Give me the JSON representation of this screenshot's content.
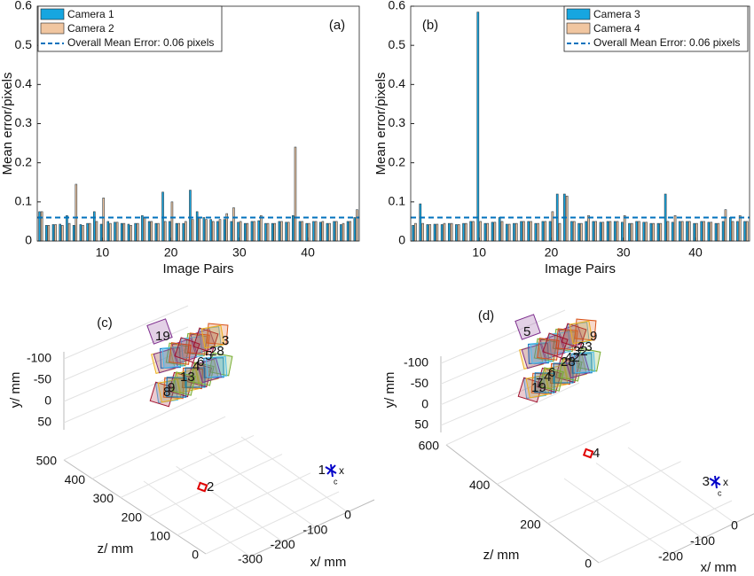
{
  "chart_data": [
    {
      "type": "bar",
      "panel": "(a)",
      "xlabel": "Image Pairs",
      "ylabel": "Mean error/pixels",
      "x": [
        1,
        2,
        3,
        4,
        5,
        6,
        7,
        8,
        9,
        10,
        11,
        12,
        13,
        14,
        15,
        16,
        17,
        18,
        19,
        20,
        21,
        22,
        23,
        24,
        25,
        26,
        27,
        28,
        29,
        30,
        31,
        32,
        33,
        34,
        35,
        36,
        37,
        38,
        39,
        40,
        41,
        42,
        43,
        44,
        45,
        46,
        47
      ],
      "series": [
        {
          "name": "Camera 1",
          "color": "#16a6e0",
          "values": [
            0.075,
            0.04,
            0.042,
            0.043,
            0.065,
            0.04,
            0.042,
            0.045,
            0.075,
            0.043,
            0.05,
            0.048,
            0.045,
            0.043,
            0.045,
            0.065,
            0.05,
            0.045,
            0.125,
            0.05,
            0.045,
            0.045,
            0.13,
            0.075,
            0.06,
            0.055,
            0.05,
            0.055,
            0.05,
            0.048,
            0.045,
            0.05,
            0.052,
            0.045,
            0.045,
            0.05,
            0.048,
            0.065,
            0.05,
            0.045,
            0.05,
            0.048,
            0.045,
            0.05,
            0.042,
            0.05,
            0.06
          ]
        },
        {
          "name": "Camera 2",
          "color": "#f1c6a0",
          "values": [
            0.075,
            0.04,
            0.042,
            0.04,
            0.045,
            0.145,
            0.04,
            0.045,
            0.05,
            0.11,
            0.045,
            0.048,
            0.045,
            0.04,
            0.045,
            0.06,
            0.05,
            0.045,
            0.05,
            0.1,
            0.045,
            0.05,
            0.055,
            0.06,
            0.055,
            0.05,
            0.055,
            0.07,
            0.085,
            0.05,
            0.045,
            0.05,
            0.065,
            0.045,
            0.045,
            0.05,
            0.048,
            0.24,
            0.05,
            0.045,
            0.05,
            0.05,
            0.045,
            0.05,
            0.045,
            0.05,
            0.08
          ]
        }
      ],
      "mean_value": 0.06,
      "mean_label": "Overall Mean Error: 0.06 pixels",
      "mean_color": "#0072bd",
      "legend": "upper left",
      "xlim": [
        0.5,
        47.5
      ],
      "xticks": [
        10,
        20,
        30,
        40
      ],
      "ylim": [
        0,
        0.6
      ],
      "yticks": [
        0,
        0.1,
        0.2,
        0.3,
        0.4,
        0.5,
        0.6
      ]
    },
    {
      "type": "bar",
      "panel": "(b)",
      "xlabel": "Image Pairs",
      "ylabel": "Mean error/pixels",
      "x": [
        1,
        2,
        3,
        4,
        5,
        6,
        7,
        8,
        9,
        10,
        11,
        12,
        13,
        14,
        15,
        16,
        17,
        18,
        19,
        20,
        21,
        22,
        23,
        24,
        25,
        26,
        27,
        28,
        29,
        30,
        31,
        32,
        33,
        34,
        35,
        36,
        37,
        38,
        39,
        40,
        41,
        42,
        43,
        44,
        45,
        46,
        47
      ],
      "series": [
        {
          "name": "Camera 3",
          "color": "#16a6e0",
          "values": [
            0.04,
            0.095,
            0.042,
            0.043,
            0.042,
            0.045,
            0.042,
            0.045,
            0.05,
            0.585,
            0.045,
            0.048,
            0.06,
            0.043,
            0.045,
            0.05,
            0.05,
            0.045,
            0.05,
            0.05,
            0.12,
            0.12,
            0.05,
            0.045,
            0.05,
            0.05,
            0.048,
            0.05,
            0.05,
            0.048,
            0.045,
            0.05,
            0.048,
            0.045,
            0.045,
            0.12,
            0.048,
            0.05,
            0.05,
            0.045,
            0.05,
            0.048,
            0.045,
            0.05,
            0.06,
            0.05,
            0.05
          ]
        },
        {
          "name": "Camera 4",
          "color": "#f1c6a0",
          "values": [
            0.045,
            0.045,
            0.042,
            0.043,
            0.045,
            0.045,
            0.042,
            0.045,
            0.05,
            0.05,
            0.045,
            0.048,
            0.05,
            0.043,
            0.045,
            0.05,
            0.05,
            0.045,
            0.05,
            0.075,
            0.045,
            0.115,
            0.05,
            0.045,
            0.065,
            0.05,
            0.048,
            0.05,
            0.05,
            0.065,
            0.045,
            0.05,
            0.048,
            0.045,
            0.045,
            0.05,
            0.065,
            0.05,
            0.05,
            0.045,
            0.05,
            0.048,
            0.045,
            0.08,
            0.05,
            0.065,
            0.05
          ]
        }
      ],
      "mean_value": 0.06,
      "mean_label": "Overall Mean Error: 0.06 pixels",
      "mean_color": "#0072bd",
      "legend": "upper right",
      "xlim": [
        0.5,
        47.5
      ],
      "xticks": [
        10,
        20,
        30,
        40
      ],
      "ylim": [
        0,
        0.6
      ],
      "yticks": [
        0,
        0.1,
        0.2,
        0.3,
        0.4,
        0.5,
        0.6
      ]
    },
    {
      "type": "scatter3d",
      "panel": "(c)",
      "xlabel": "x/ mm",
      "ylabel": "y/ mm",
      "zlabel": "z/ mm",
      "xlim": [
        -300,
        0
      ],
      "xticks": [
        -300,
        -200,
        -100,
        0
      ],
      "ylim": [
        -100,
        50
      ],
      "yticks": [
        -100,
        -50,
        0,
        50
      ],
      "zlim": [
        0,
        500
      ],
      "zticks": [
        0,
        100,
        200,
        300,
        400,
        500
      ],
      "camera_labels": [
        {
          "text": "2",
          "color": "#e00000"
        },
        {
          "text": "1",
          "color": "#0000c8"
        }
      ],
      "camera_axis_label": "x",
      "camera_axis_subscript": "c",
      "board_labels": [
        "19",
        "6",
        "9",
        "28",
        "13",
        "3",
        "4",
        "8",
        "5"
      ],
      "board_colors": [
        "#7e2f8e",
        "#d95319",
        "#edb120",
        "#77ac30",
        "#4dbeee",
        "#a2142f",
        "#0072bd"
      ]
    },
    {
      "type": "scatter3d",
      "panel": "(d)",
      "xlabel": "x/ mm",
      "ylabel": "y/ mm",
      "zlabel": "z/ mm",
      "xlim": [
        -200,
        0
      ],
      "xticks": [
        -200,
        -100,
        0
      ],
      "ylim": [
        -100,
        50
      ],
      "yticks": [
        -100,
        -50,
        0,
        50
      ],
      "zlim": [
        0,
        600
      ],
      "zticks": [
        0,
        200,
        400,
        600
      ],
      "camera_labels": [
        {
          "text": "4",
          "color": "#e00000"
        },
        {
          "text": "3",
          "color": "#0000c8"
        }
      ],
      "camera_axis_label": "x",
      "camera_axis_subscript": "c",
      "board_labels": [
        "5",
        "42",
        "7",
        "23",
        "6",
        "9",
        "28",
        "19",
        "32",
        "4"
      ],
      "board_colors": [
        "#7e2f8e",
        "#d95319",
        "#edb120",
        "#77ac30",
        "#4dbeee",
        "#a2142f",
        "#0072bd"
      ]
    }
  ]
}
